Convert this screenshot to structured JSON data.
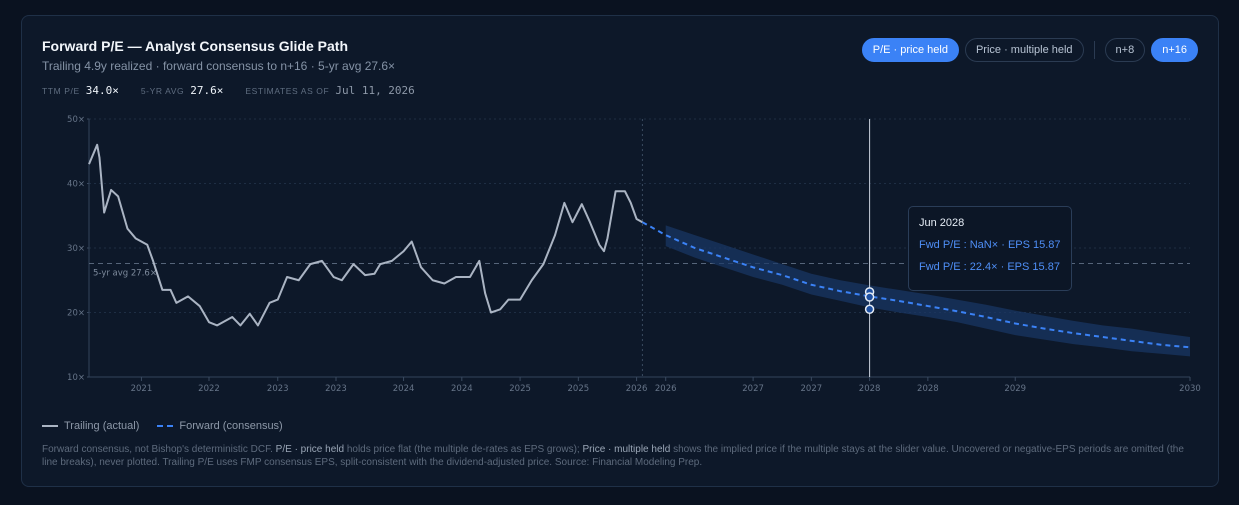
{
  "header": {
    "title": "Forward P/E — Analyst Consensus Glide Path",
    "subtitle": "Trailing 4.9y realized · forward consensus to n+16 · 5-yr avg 27.6×"
  },
  "stats": [
    {
      "label": "TTM P/E",
      "value": "34.0×"
    },
    {
      "label": "5-YR AVG",
      "value": "27.6×"
    },
    {
      "label": "ESTIMATES AS OF",
      "value": "Jul 11, 2026"
    }
  ],
  "controls": {
    "mode_price_held": "P/E · price held",
    "mode_multiple_held": "Price · multiple held",
    "horizon_n8": "n+8",
    "horizon_n16": "n+16"
  },
  "legend": {
    "trailing": "Trailing (actual)",
    "forward": "Forward (consensus)"
  },
  "tooltip": {
    "title": "Jun 2028",
    "row1": "Fwd P/E : NaN× · EPS 15.87",
    "row2": "Fwd P/E : 22.4× · EPS 15.87"
  },
  "footnote": {
    "p1": "Forward consensus, not Bishop's deterministic DCF. ",
    "b1": "P/E · price held",
    "p2": " holds price flat (the multiple de-rates as EPS grows); ",
    "b2": "Price · multiple held",
    "p3": " shows the implied price if the multiple stays at the slider value. Uncovered or negative-EPS periods are omitted (the line breaks), never plotted. Trailing P/E uses FMP consensus EPS, split-consistent with the dividend-adjusted price. Source: Financial Modeling Prep."
  },
  "colors": {
    "trailing": "#aab4c3",
    "forward": "#3b82f6",
    "band": "#1a3866",
    "grid": "#1e2e44"
  },
  "chart_data": {
    "type": "line",
    "ylim": [
      10,
      50
    ],
    "yticks": [
      10,
      20,
      30,
      40,
      50
    ],
    "ytick_labels": [
      "10×",
      "20×",
      "30×",
      "40×",
      "50×"
    ],
    "xlim": [
      2020.55,
      2030.0
    ],
    "xticks": [
      {
        "x": 2021.0,
        "label": "2021"
      },
      {
        "x": 2021.58,
        "label": "2022"
      },
      {
        "x": 2022.17,
        "label": "2023"
      },
      {
        "x": 2022.67,
        "label": "2023"
      },
      {
        "x": 2023.25,
        "label": "2024"
      },
      {
        "x": 2023.75,
        "label": "2024"
      },
      {
        "x": 2024.25,
        "label": "2025"
      },
      {
        "x": 2024.75,
        "label": "2025"
      },
      {
        "x": 2025.25,
        "label": "2026"
      },
      {
        "x": 2025.5,
        "label": "2026"
      },
      {
        "x": 2026.25,
        "label": "2027"
      },
      {
        "x": 2026.75,
        "label": "2027"
      },
      {
        "x": 2027.25,
        "label": "2028"
      },
      {
        "x": 2027.75,
        "label": "2028"
      },
      {
        "x": 2028.5,
        "label": "2029"
      },
      {
        "x": 2030.0,
        "label": "2030"
      }
    ],
    "reference_line": {
      "value": 27.6,
      "label": "5-yr avg 27.6×"
    },
    "estimates_as_of_x": 2025.3,
    "cursor_x": 2027.25,
    "series": [
      {
        "name": "Trailing (actual)",
        "style": "solid",
        "points": [
          [
            2020.55,
            43.0
          ],
          [
            2020.62,
            46.0
          ],
          [
            2020.64,
            44.0
          ],
          [
            2020.68,
            35.5
          ],
          [
            2020.74,
            39.0
          ],
          [
            2020.8,
            38.0
          ],
          [
            2020.88,
            33.0
          ],
          [
            2020.95,
            31.5
          ],
          [
            2021.05,
            30.5
          ],
          [
            2021.1,
            28.0
          ],
          [
            2021.18,
            23.5
          ],
          [
            2021.25,
            23.5
          ],
          [
            2021.3,
            21.5
          ],
          [
            2021.4,
            22.5
          ],
          [
            2021.5,
            21.0
          ],
          [
            2021.58,
            18.5
          ],
          [
            2021.65,
            18.0
          ],
          [
            2021.78,
            19.3
          ],
          [
            2021.85,
            18.0
          ],
          [
            2021.93,
            19.8
          ],
          [
            2022.0,
            18.0
          ],
          [
            2022.1,
            21.5
          ],
          [
            2022.17,
            22.0
          ],
          [
            2022.25,
            25.5
          ],
          [
            2022.35,
            25.0
          ],
          [
            2022.45,
            27.5
          ],
          [
            2022.55,
            28.0
          ],
          [
            2022.65,
            25.5
          ],
          [
            2022.72,
            25.0
          ],
          [
            2022.82,
            27.5
          ],
          [
            2022.92,
            25.8
          ],
          [
            2023.0,
            26.0
          ],
          [
            2023.05,
            27.5
          ],
          [
            2023.15,
            28.0
          ],
          [
            2023.25,
            29.5
          ],
          [
            2023.32,
            31.0
          ],
          [
            2023.4,
            27.0
          ],
          [
            2023.5,
            25.0
          ],
          [
            2023.6,
            24.5
          ],
          [
            2023.7,
            25.5
          ],
          [
            2023.82,
            25.5
          ],
          [
            2023.9,
            28.0
          ],
          [
            2023.95,
            23.0
          ],
          [
            2024.0,
            20.0
          ],
          [
            2024.08,
            20.5
          ],
          [
            2024.15,
            22.0
          ],
          [
            2024.25,
            22.0
          ],
          [
            2024.35,
            25.0
          ],
          [
            2024.45,
            27.5
          ],
          [
            2024.55,
            32.0
          ],
          [
            2024.63,
            37.0
          ],
          [
            2024.7,
            34.0
          ],
          [
            2024.78,
            36.8
          ],
          [
            2024.85,
            34.0
          ],
          [
            2024.93,
            30.5
          ],
          [
            2024.97,
            29.5
          ],
          [
            2025.0,
            31.5
          ],
          [
            2025.07,
            38.8
          ],
          [
            2025.15,
            38.8
          ],
          [
            2025.2,
            37.0
          ],
          [
            2025.25,
            34.5
          ],
          [
            2025.3,
            34.0
          ]
        ]
      },
      {
        "name": "Forward (consensus)",
        "style": "dashed",
        "points": [
          [
            2025.3,
            34.0
          ],
          [
            2025.5,
            32.0
          ],
          [
            2025.75,
            30.0
          ],
          [
            2026.0,
            28.5
          ],
          [
            2026.25,
            27.0
          ],
          [
            2026.5,
            25.8
          ],
          [
            2026.75,
            24.3
          ],
          [
            2027.0,
            23.3
          ],
          [
            2027.25,
            22.5
          ],
          [
            2027.5,
            21.8
          ],
          [
            2027.75,
            21.0
          ],
          [
            2028.0,
            20.2
          ],
          [
            2028.25,
            19.3
          ],
          [
            2028.5,
            18.3
          ],
          [
            2028.75,
            17.5
          ],
          [
            2029.0,
            16.8
          ],
          [
            2029.25,
            16.2
          ],
          [
            2029.5,
            15.6
          ],
          [
            2029.75,
            15.0
          ],
          [
            2030.0,
            14.6
          ]
        ],
        "band": [
          [
            2025.5,
            30.3,
            33.5
          ],
          [
            2025.75,
            28.5,
            32.0
          ],
          [
            2026.0,
            27.0,
            30.5
          ],
          [
            2026.25,
            25.5,
            29.0
          ],
          [
            2026.5,
            24.3,
            27.5
          ],
          [
            2026.75,
            22.8,
            26.0
          ],
          [
            2027.0,
            21.8,
            25.0
          ],
          [
            2027.25,
            20.8,
            24.2
          ],
          [
            2027.5,
            20.0,
            23.5
          ],
          [
            2027.75,
            19.3,
            22.8
          ],
          [
            2028.0,
            18.5,
            22.0
          ],
          [
            2028.25,
            17.5,
            21.2
          ],
          [
            2028.5,
            16.5,
            20.3
          ],
          [
            2028.75,
            15.8,
            19.5
          ],
          [
            2029.0,
            15.1,
            18.7
          ],
          [
            2029.25,
            14.6,
            18.0
          ],
          [
            2029.5,
            14.0,
            17.5
          ],
          [
            2029.75,
            13.6,
            16.8
          ],
          [
            2030.0,
            13.2,
            16.2
          ]
        ]
      }
    ],
    "cursor_markers": [
      23.2,
      22.4,
      20.5
    ]
  }
}
